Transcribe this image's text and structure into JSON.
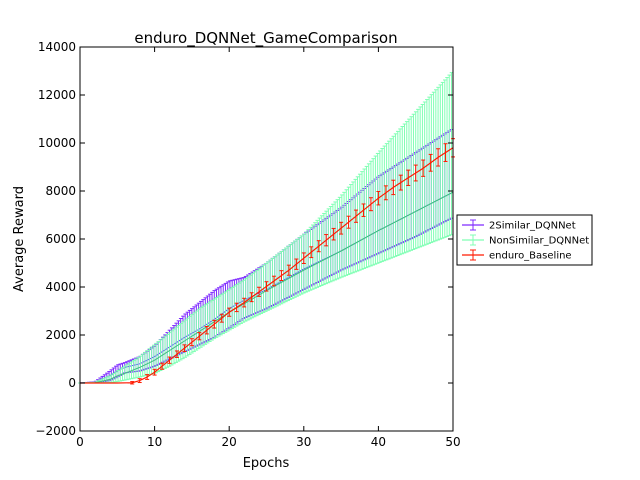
{
  "chart_data": {
    "type": "line",
    "title": "enduro_DQNNet_GameComparison",
    "xlabel": "Epochs",
    "ylabel": "Average Reward",
    "xlim": [
      0,
      50
    ],
    "ylim": [
      -2000,
      14000
    ],
    "x_ticks": [
      "0",
      "10",
      "20",
      "30",
      "40",
      "50"
    ],
    "y_ticks": [
      "−2000",
      "0",
      "2000",
      "4000",
      "6000",
      "8000",
      "10000",
      "12000",
      "14000"
    ],
    "grid": false,
    "legend_position": "outside-right",
    "series": [
      {
        "name": "2Similar_DQNNet",
        "color": "#7f2bff",
        "x": [
          0,
          2,
          4,
          5,
          6,
          8,
          10,
          12,
          14,
          16,
          18,
          20,
          22,
          25,
          30,
          35,
          40,
          45,
          50
        ],
        "mean": [
          0,
          20,
          300,
          500,
          650,
          800,
          1100,
          1500,
          1900,
          2250,
          2650,
          3100,
          3450,
          3900,
          4750,
          5500,
          6350,
          7150,
          7950
        ],
        "lower": [
          0,
          0,
          100,
          250,
          420,
          500,
          700,
          1000,
          1300,
          1600,
          1900,
          2300,
          2700,
          3100,
          3900,
          4700,
          5400,
          6100,
          6900
        ],
        "upper": [
          0,
          50,
          500,
          750,
          850,
          1100,
          1550,
          2200,
          2850,
          3350,
          3850,
          4250,
          4400,
          5000,
          6200,
          7300,
          8600,
          9600,
          10600
        ]
      },
      {
        "name": "NonSimilar_DQNNet",
        "color": "#80ffb4",
        "x": [
          0,
          2,
          4,
          5,
          6,
          8,
          10,
          12,
          14,
          16,
          18,
          20,
          22,
          25,
          30,
          35,
          40,
          45,
          50
        ],
        "mean": [
          0,
          10,
          150,
          300,
          400,
          650,
          950,
          1350,
          1750,
          2150,
          2550,
          2950,
          3300,
          3850,
          4700,
          5500,
          6350,
          7150,
          7950
        ],
        "lower": [
          0,
          0,
          20,
          60,
          120,
          250,
          400,
          700,
          1050,
          1450,
          1850,
          2200,
          2550,
          3000,
          3750,
          4400,
          5000,
          5600,
          6200
        ],
        "upper": [
          0,
          30,
          300,
          500,
          700,
          1100,
          1600,
          2100,
          2600,
          3100,
          3500,
          3900,
          4300,
          5000,
          6200,
          7800,
          9600,
          11300,
          13000
        ]
      },
      {
        "name": "enduro_Baseline",
        "color": "#ff1a00",
        "x": [
          0,
          5,
          7,
          8,
          9,
          10,
          12,
          14,
          16,
          18,
          20,
          22,
          24,
          26,
          28,
          30,
          32,
          34,
          36,
          38,
          40,
          42,
          44,
          46,
          48,
          50
        ],
        "mean": [
          0,
          0,
          10,
          100,
          250,
          450,
          950,
          1450,
          1950,
          2450,
          2950,
          3350,
          3800,
          4250,
          4700,
          5200,
          5700,
          6200,
          6700,
          7200,
          7700,
          8150,
          8550,
          8950,
          9400,
          9800
        ],
        "err": [
          0,
          0,
          50,
          80,
          100,
          120,
          130,
          140,
          150,
          160,
          170,
          180,
          190,
          200,
          210,
          220,
          230,
          240,
          250,
          260,
          280,
          300,
          320,
          340,
          360,
          380
        ]
      }
    ]
  }
}
